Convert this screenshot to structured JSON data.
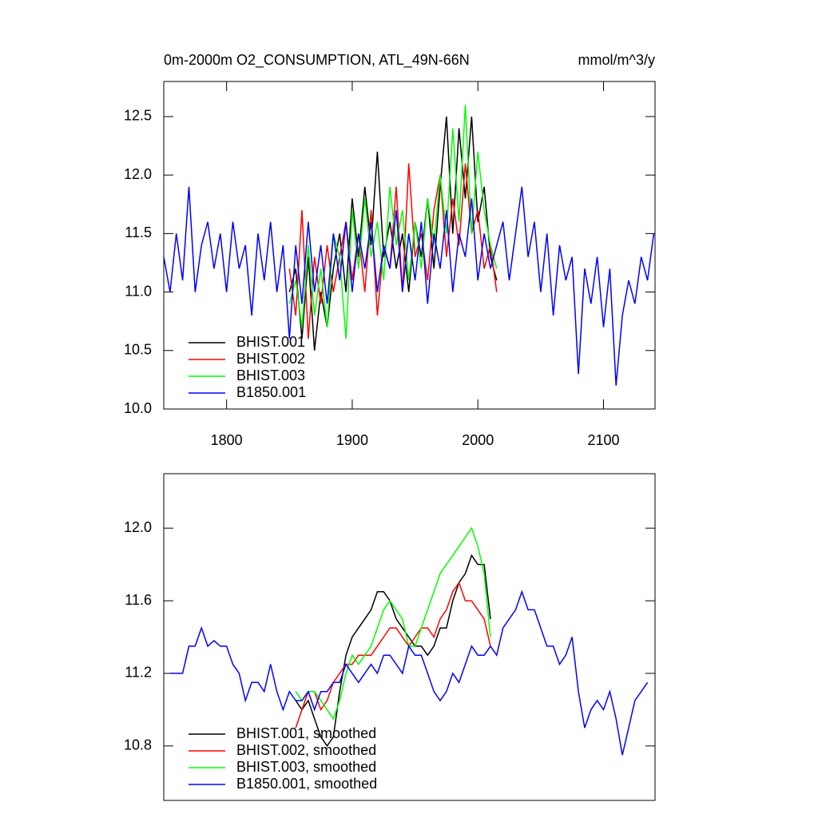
{
  "chart_data": [
    {
      "type": "line",
      "title": "0m-2000m O2_CONSUMPTION, ATL_49N-66N",
      "title_right": "mmol/m^3/y",
      "xlim": [
        1750,
        2141
      ],
      "xticks": [
        1800,
        1900,
        2000,
        2100
      ],
      "ylim": [
        10.0,
        12.8
      ],
      "yticks": [
        {
          "value": 10,
          "label": "10.0"
        },
        10.5,
        {
          "value": 11,
          "label": "11.0"
        },
        11.5,
        {
          "value": 12,
          "label": "12.0"
        },
        12.5
      ],
      "legend": "lower left",
      "series": [
        {
          "name": "BHIST.001",
          "color": "#000000",
          "x": [
            1850,
            1855,
            1860,
            1865,
            1870,
            1875,
            1880,
            1885,
            1890,
            1895,
            1900,
            1905,
            1910,
            1915,
            1920,
            1925,
            1930,
            1935,
            1940,
            1945,
            1950,
            1955,
            1960,
            1965,
            1970,
            1975,
            1980,
            1985,
            1990,
            1995,
            2000,
            2005,
            2010,
            2015
          ],
          "values": [
            11.0,
            11.2,
            10.6,
            11.3,
            10.5,
            11.0,
            10.7,
            11.2,
            11.5,
            11.0,
            11.8,
            11.3,
            11.9,
            11.4,
            12.2,
            11.3,
            11.6,
            11.2,
            11.5,
            11.0,
            11.6,
            11.3,
            11.8,
            11.2,
            11.9,
            12.5,
            11.5,
            12.4,
            11.8,
            12.5,
            11.6,
            11.9,
            11.3,
            11.1
          ]
        },
        {
          "name": "BHIST.002",
          "color": "#ff0000",
          "x": [
            1850,
            1855,
            1860,
            1865,
            1870,
            1875,
            1880,
            1885,
            1890,
            1895,
            1900,
            1905,
            1910,
            1915,
            1920,
            1925,
            1930,
            1935,
            1940,
            1945,
            1950,
            1955,
            1960,
            1965,
            1970,
            1975,
            1980,
            1985,
            1990,
            1995,
            2000,
            2005,
            2010,
            2015
          ],
          "values": [
            11.2,
            10.8,
            11.7,
            10.6,
            11.3,
            10.9,
            11.4,
            11.0,
            11.3,
            11.6,
            11.1,
            11.5,
            11.0,
            11.7,
            10.8,
            11.4,
            11.2,
            11.9,
            11.0,
            12.1,
            11.3,
            11.5,
            11.1,
            11.7,
            12.0,
            11.3,
            11.8,
            11.4,
            12.1,
            11.5,
            11.7,
            11.2,
            11.4,
            11.0
          ]
        },
        {
          "name": "BHIST.003",
          "color": "#00ff00",
          "x": [
            1850,
            1855,
            1860,
            1865,
            1870,
            1875,
            1880,
            1885,
            1890,
            1895,
            1900,
            1905,
            1910,
            1915,
            1920,
            1925,
            1930,
            1935,
            1940,
            1945,
            1950,
            1955,
            1960,
            1965,
            1970,
            1975,
            1980,
            1985,
            1990,
            1995,
            2000,
            2005,
            2010,
            2015
          ],
          "values": [
            10.9,
            11.1,
            10.7,
            11.4,
            10.8,
            11.2,
            10.7,
            11.5,
            11.3,
            10.6,
            11.7,
            11.2,
            11.8,
            11.3,
            11.6,
            11.1,
            11.9,
            11.4,
            11.7,
            11.1,
            11.6,
            11.2,
            11.8,
            11.4,
            12.0,
            11.5,
            12.4,
            11.6,
            12.6,
            11.5,
            12.2,
            11.7,
            11.4,
            11.2
          ]
        },
        {
          "name": "B1850.001",
          "color": "#0000ff",
          "x": [
            1750,
            1755,
            1760,
            1765,
            1770,
            1775,
            1780,
            1785,
            1790,
            1795,
            1800,
            1805,
            1810,
            1815,
            1820,
            1825,
            1830,
            1835,
            1840,
            1845,
            1850,
            1855,
            1860,
            1865,
            1870,
            1875,
            1880,
            1885,
            1890,
            1895,
            1900,
            1905,
            1910,
            1915,
            1920,
            1925,
            1930,
            1935,
            1940,
            1945,
            1950,
            1955,
            1960,
            1965,
            1970,
            1975,
            1980,
            1985,
            1990,
            1995,
            2000,
            2005,
            2010,
            2015,
            2020,
            2025,
            2030,
            2035,
            2040,
            2045,
            2050,
            2055,
            2060,
            2065,
            2070,
            2075,
            2080,
            2085,
            2090,
            2095,
            2100,
            2105,
            2110,
            2115,
            2120,
            2125,
            2130,
            2135,
            2140
          ],
          "values": [
            11.3,
            11.0,
            11.5,
            11.1,
            11.9,
            11.0,
            11.4,
            11.6,
            11.2,
            11.5,
            11.0,
            11.6,
            11.2,
            11.4,
            10.8,
            11.5,
            11.1,
            11.6,
            11.0,
            11.4,
            10.6,
            11.4,
            10.9,
            11.6,
            11.0,
            11.4,
            10.9,
            11.5,
            11.1,
            11.6,
            11.0,
            11.5,
            11.2,
            11.6,
            11.0,
            11.4,
            11.2,
            11.7,
            11.0,
            11.5,
            11.1,
            11.6,
            10.9,
            11.5,
            11.2,
            11.7,
            11.0,
            11.5,
            11.3,
            11.8,
            11.1,
            11.5,
            11.2,
            11.4,
            11.6,
            11.1,
            11.5,
            11.9,
            11.3,
            11.6,
            11.0,
            11.5,
            10.8,
            11.4,
            11.1,
            11.3,
            10.3,
            11.2,
            10.9,
            11.3,
            10.7,
            11.2,
            10.2,
            10.8,
            11.1,
            10.9,
            11.3,
            11.1,
            11.5
          ]
        }
      ]
    },
    {
      "type": "line",
      "xlim": [
        1750,
        2141
      ],
      "ylim": [
        10.5,
        12.3
      ],
      "yticks": [
        10.8,
        11.2,
        11.6,
        {
          "value": 12,
          "label": "12.0"
        }
      ],
      "legend": "lower left",
      "series": [
        {
          "name": "BHIST.001, smoothed",
          "color": "#000000",
          "x": [
            1855,
            1860,
            1865,
            1870,
            1875,
            1880,
            1885,
            1890,
            1895,
            1900,
            1905,
            1910,
            1915,
            1920,
            1925,
            1930,
            1935,
            1940,
            1945,
            1950,
            1955,
            1960,
            1965,
            1970,
            1975,
            1980,
            1985,
            1990,
            1995,
            2000,
            2005,
            2010
          ],
          "values": [
            11.05,
            11.0,
            11.05,
            10.95,
            10.85,
            10.8,
            10.85,
            11.1,
            11.3,
            11.4,
            11.45,
            11.5,
            11.55,
            11.65,
            11.65,
            11.6,
            11.5,
            11.45,
            11.4,
            11.35,
            11.35,
            11.3,
            11.35,
            11.45,
            11.45,
            11.6,
            11.7,
            11.75,
            11.85,
            11.8,
            11.8,
            11.5
          ]
        },
        {
          "name": "BHIST.002, smoothed",
          "color": "#ff0000",
          "x": [
            1855,
            1860,
            1865,
            1870,
            1875,
            1880,
            1885,
            1890,
            1895,
            1900,
            1905,
            1910,
            1915,
            1920,
            1925,
            1930,
            1935,
            1940,
            1945,
            1950,
            1955,
            1960,
            1965,
            1970,
            1975,
            1980,
            1985,
            1990,
            1995,
            2000,
            2005,
            2010
          ],
          "values": [
            10.9,
            11.0,
            11.1,
            11.1,
            11.0,
            11.05,
            11.15,
            11.2,
            11.25,
            11.25,
            11.3,
            11.3,
            11.3,
            11.35,
            11.4,
            11.45,
            11.45,
            11.4,
            11.35,
            11.4,
            11.45,
            11.45,
            11.4,
            11.5,
            11.55,
            11.65,
            11.7,
            11.6,
            11.6,
            11.55,
            11.5,
            11.35
          ]
        },
        {
          "name": "BHIST.003, smoothed",
          "color": "#00ff00",
          "x": [
            1855,
            1860,
            1865,
            1870,
            1875,
            1880,
            1885,
            1890,
            1895,
            1900,
            1905,
            1910,
            1915,
            1920,
            1925,
            1930,
            1935,
            1940,
            1945,
            1950,
            1955,
            1960,
            1965,
            1970,
            1975,
            1980,
            1985,
            1990,
            1995,
            2000,
            2005,
            2010
          ],
          "values": [
            11.1,
            11.05,
            11.1,
            11.1,
            11.05,
            11.0,
            10.95,
            11.05,
            11.2,
            11.3,
            11.25,
            11.3,
            11.35,
            11.45,
            11.55,
            11.6,
            11.55,
            11.5,
            11.35,
            11.35,
            11.45,
            11.55,
            11.65,
            11.75,
            11.8,
            11.85,
            11.9,
            11.95,
            12.0,
            11.9,
            11.75,
            11.4
          ]
        },
        {
          "name": "B1850.001, smoothed",
          "color": "#0000ff",
          "x": [
            1755,
            1760,
            1765,
            1770,
            1775,
            1780,
            1785,
            1790,
            1795,
            1800,
            1805,
            1810,
            1815,
            1820,
            1825,
            1830,
            1835,
            1840,
            1845,
            1850,
            1855,
            1860,
            1865,
            1870,
            1875,
            1880,
            1885,
            1890,
            1895,
            1900,
            1905,
            1910,
            1915,
            1920,
            1925,
            1930,
            1935,
            1940,
            1945,
            1950,
            1955,
            1960,
            1965,
            1970,
            1975,
            1980,
            1985,
            1990,
            1995,
            2000,
            2005,
            2010,
            2015,
            2020,
            2025,
            2030,
            2035,
            2040,
            2045,
            2050,
            2055,
            2060,
            2065,
            2070,
            2075,
            2080,
            2085,
            2090,
            2095,
            2100,
            2105,
            2110,
            2115,
            2120,
            2125,
            2130,
            2135
          ],
          "values": [
            11.2,
            11.2,
            11.2,
            11.35,
            11.35,
            11.45,
            11.35,
            11.38,
            11.35,
            11.35,
            11.25,
            11.2,
            11.05,
            11.15,
            11.15,
            11.1,
            11.25,
            11.1,
            11.0,
            11.1,
            11.05,
            11.05,
            11.1,
            11.0,
            11.1,
            11.1,
            11.15,
            11.15,
            11.25,
            11.2,
            11.15,
            11.2,
            11.25,
            11.2,
            11.3,
            11.3,
            11.25,
            11.2,
            11.35,
            11.3,
            11.3,
            11.2,
            11.1,
            11.05,
            11.1,
            11.2,
            11.15,
            11.25,
            11.35,
            11.3,
            11.3,
            11.35,
            11.3,
            11.45,
            11.5,
            11.55,
            11.65,
            11.55,
            11.55,
            11.45,
            11.35,
            11.35,
            11.25,
            11.3,
            11.4,
            11.1,
            10.9,
            11.0,
            11.05,
            11.0,
            11.1,
            10.95,
            10.75,
            10.9,
            11.05,
            11.1,
            11.15
          ]
        }
      ]
    }
  ]
}
